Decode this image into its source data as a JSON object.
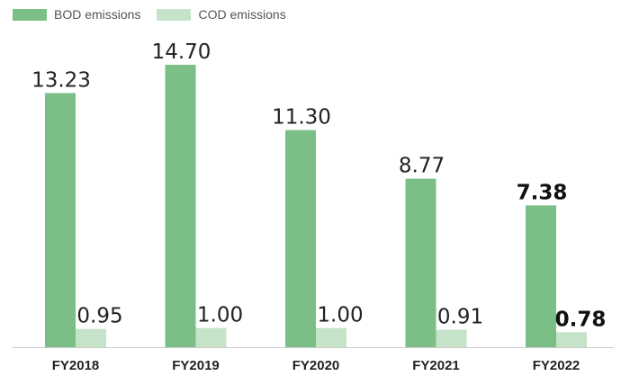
{
  "colors": {
    "bod": "#7bbf87",
    "cod": "#c5e3c9",
    "axis": "#cccccc"
  },
  "legend": {
    "bod_label": "BOD emissions",
    "cod_label": "COD emissions"
  },
  "chart_data": {
    "type": "bar",
    "categories": [
      "FY2018",
      "FY2019",
      "FY2020",
      "FY2021",
      "FY2022"
    ],
    "series": [
      {
        "name": "BOD emissions",
        "values": [
          13.23,
          14.7,
          11.3,
          8.77,
          7.38
        ]
      },
      {
        "name": "COD emissions",
        "values": [
          0.95,
          1.0,
          1.0,
          0.91,
          0.78
        ]
      }
    ],
    "value_labels": {
      "BOD emissions": [
        "13.23",
        "14.70",
        "11.30",
        "8.77",
        "7.38"
      ],
      "COD emissions": [
        "0.95",
        "1.00",
        "1.00",
        "0.91",
        "0.78"
      ]
    },
    "highlight_category": "FY2022",
    "ylim": [
      0,
      14.7
    ],
    "grid": false,
    "legend_position": "top-left",
    "title": "",
    "xlabel": "",
    "ylabel": ""
  }
}
